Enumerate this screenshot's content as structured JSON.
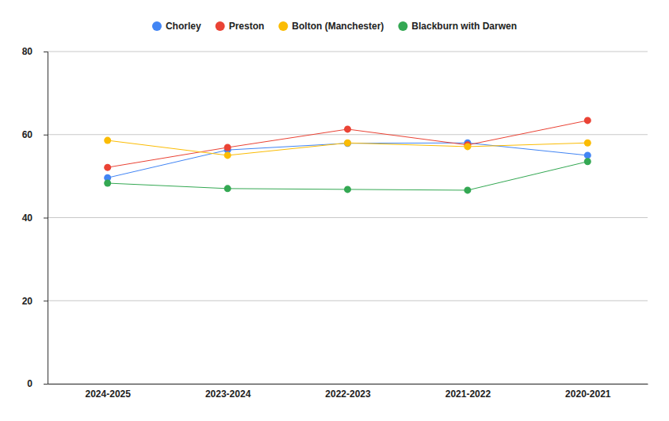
{
  "chart_data": {
    "type": "line",
    "categories": [
      "2024-2025",
      "2023-2024",
      "2022-2023",
      "2021-2022",
      "2020-2021"
    ],
    "series": [
      {
        "name": "Chorley",
        "color": "#4285f4",
        "values": [
          49.6,
          56.3,
          57.9,
          58.0,
          55.0
        ]
      },
      {
        "name": "Preston",
        "color": "#ea4335",
        "values": [
          52.1,
          56.9,
          61.3,
          57.5,
          63.4
        ]
      },
      {
        "name": "Bolton (Manchester)",
        "color": "#fbbc04",
        "values": [
          58.6,
          55.0,
          58.0,
          57.1,
          58.0
        ]
      },
      {
        "name": "Blackburn with Darwen",
        "color": "#34a853",
        "values": [
          48.3,
          47.0,
          46.8,
          46.6,
          53.5
        ]
      }
    ],
    "ylim": [
      0,
      80
    ],
    "yticks": [
      0,
      20,
      40,
      60,
      80
    ],
    "grid": true,
    "legend": "top",
    "marker": "circle"
  }
}
